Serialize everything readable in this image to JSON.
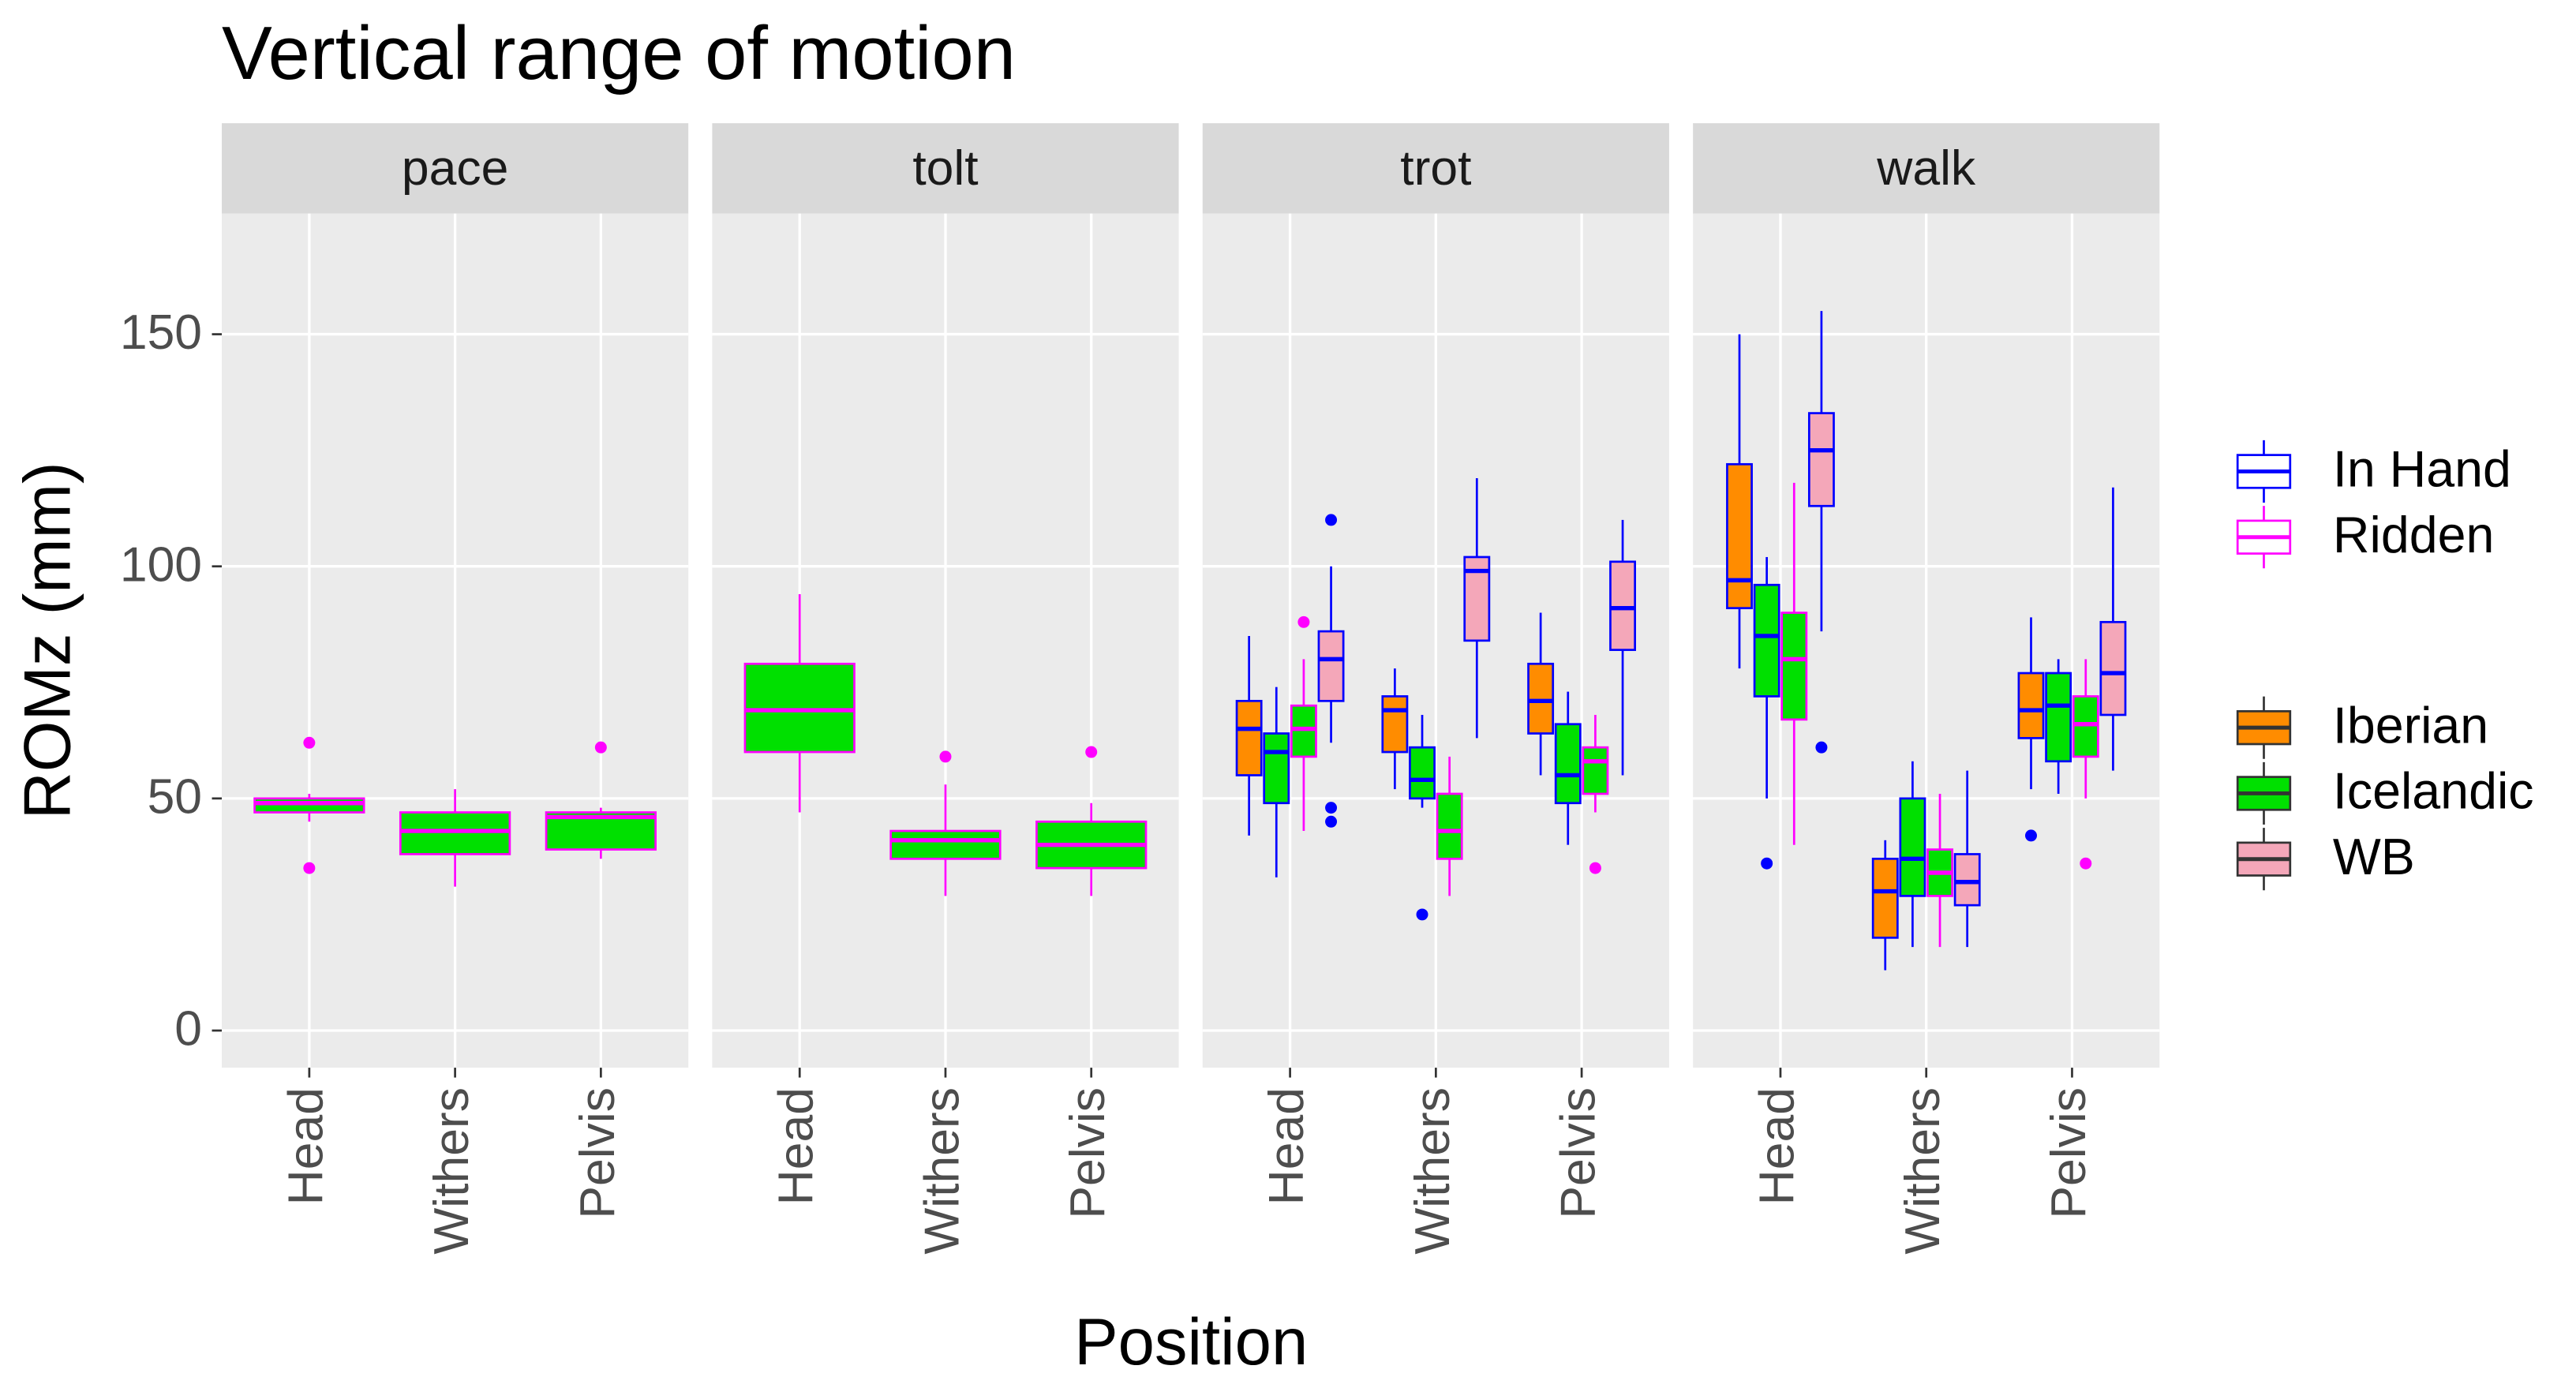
{
  "chart_data": {
    "type": "box",
    "title": "Vertical range of motion",
    "x_label": "Position",
    "y_label": "ROMz (mm)",
    "ylim": [
      -8,
      176
    ],
    "yticks": [
      0,
      50,
      100,
      150
    ],
    "grid": true,
    "categories": [
      "Head",
      "Withers",
      "Pelvis"
    ],
    "legends": {
      "outline": [
        {
          "name": "In Hand",
          "color": "#0000ff"
        },
        {
          "name": "Ridden",
          "color": "#ff00ff"
        }
      ],
      "fill": [
        {
          "name": "Iberian",
          "color": "#ff8c00"
        },
        {
          "name": "Icelandic",
          "color": "#00e000"
        },
        {
          "name": "WB",
          "color": "#f4a7b9"
        }
      ]
    },
    "facets": [
      {
        "name": "pace",
        "boxes": [
          {
            "position": "Head",
            "breed": "Icelandic",
            "handling": "Ridden",
            "stats": [
              45,
              47,
              49,
              50,
              51
            ],
            "outliers": [
              62,
              35
            ]
          },
          {
            "position": "Withers",
            "breed": "Icelandic",
            "handling": "Ridden",
            "stats": [
              31,
              38,
              43,
              47,
              52
            ]
          },
          {
            "position": "Pelvis",
            "breed": "Icelandic",
            "handling": "Ridden",
            "stats": [
              37,
              39,
              46,
              47,
              48
            ],
            "outliers": [
              61
            ]
          }
        ]
      },
      {
        "name": "tolt",
        "boxes": [
          {
            "position": "Head",
            "breed": "Icelandic",
            "handling": "Ridden",
            "stats": [
              47,
              60,
              69,
              79,
              94
            ]
          },
          {
            "position": "Withers",
            "breed": "Icelandic",
            "handling": "Ridden",
            "stats": [
              29,
              37,
              41,
              43,
              53
            ],
            "outliers": [
              59
            ]
          },
          {
            "position": "Pelvis",
            "breed": "Icelandic",
            "handling": "Ridden",
            "stats": [
              29,
              35,
              40,
              45,
              49
            ],
            "outliers": [
              60
            ]
          }
        ]
      },
      {
        "name": "trot",
        "boxes": [
          {
            "position": "Head",
            "breed": "Iberian",
            "handling": "In Hand",
            "stats": [
              42,
              55,
              65,
              71,
              85
            ]
          },
          {
            "position": "Head",
            "breed": "Icelandic",
            "handling": "In Hand",
            "stats": [
              33,
              49,
              60,
              64,
              74
            ]
          },
          {
            "position": "Head",
            "breed": "Icelandic",
            "handling": "Ridden",
            "stats": [
              43,
              59,
              65,
              70,
              80
            ],
            "outliers": [
              88
            ]
          },
          {
            "position": "Head",
            "breed": "WB",
            "handling": "In Hand",
            "stats": [
              62,
              71,
              80,
              86,
              100
            ],
            "outliers": [
              110,
              48,
              45
            ]
          },
          {
            "position": "Withers",
            "breed": "Iberian",
            "handling": "In Hand",
            "stats": [
              52,
              60,
              69,
              72,
              78
            ]
          },
          {
            "position": "Withers",
            "breed": "Icelandic",
            "handling": "In Hand",
            "stats": [
              48,
              50,
              54,
              61,
              68
            ],
            "outliers": [
              25
            ]
          },
          {
            "position": "Withers",
            "breed": "Icelandic",
            "handling": "Ridden",
            "stats": [
              29,
              37,
              43,
              51,
              59
            ]
          },
          {
            "position": "Withers",
            "breed": "WB",
            "handling": "In Hand",
            "stats": [
              63,
              84,
              99,
              102,
              119
            ]
          },
          {
            "position": "Pelvis",
            "breed": "Iberian",
            "handling": "In Hand",
            "stats": [
              55,
              64,
              71,
              79,
              90
            ]
          },
          {
            "position": "Pelvis",
            "breed": "Icelandic",
            "handling": "In Hand",
            "stats": [
              40,
              49,
              55,
              66,
              73
            ]
          },
          {
            "position": "Pelvis",
            "breed": "Icelandic",
            "handling": "Ridden",
            "stats": [
              47,
              51,
              58,
              61,
              68
            ],
            "outliers": [
              35
            ]
          },
          {
            "position": "Pelvis",
            "breed": "WB",
            "handling": "In Hand",
            "stats": [
              55,
              82,
              91,
              101,
              110
            ]
          }
        ]
      },
      {
        "name": "walk",
        "boxes": [
          {
            "position": "Head",
            "breed": "Iberian",
            "handling": "In Hand",
            "stats": [
              78,
              91,
              97,
              122,
              150
            ]
          },
          {
            "position": "Head",
            "breed": "Icelandic",
            "handling": "In Hand",
            "stats": [
              50,
              72,
              85,
              96,
              102
            ],
            "outliers": [
              36
            ]
          },
          {
            "position": "Head",
            "breed": "Icelandic",
            "handling": "Ridden",
            "stats": [
              40,
              67,
              80,
              90,
              118
            ]
          },
          {
            "position": "Head",
            "breed": "WB",
            "handling": "In Hand",
            "stats": [
              86,
              113,
              125,
              133,
              155
            ],
            "outliers": [
              61
            ]
          },
          {
            "position": "Withers",
            "breed": "Iberian",
            "handling": "In Hand",
            "stats": [
              13,
              20,
              30,
              37,
              41
            ]
          },
          {
            "position": "Withers",
            "breed": "Icelandic",
            "handling": "In Hand",
            "stats": [
              18,
              29,
              37,
              50,
              58
            ]
          },
          {
            "position": "Withers",
            "breed": "Icelandic",
            "handling": "Ridden",
            "stats": [
              18,
              29,
              34,
              39,
              51
            ]
          },
          {
            "position": "Withers",
            "breed": "WB",
            "handling": "In Hand",
            "stats": [
              18,
              27,
              32,
              38,
              56
            ]
          },
          {
            "position": "Pelvis",
            "breed": "Iberian",
            "handling": "In Hand",
            "stats": [
              52,
              63,
              69,
              77,
              89
            ],
            "outliers": [
              42
            ]
          },
          {
            "position": "Pelvis",
            "breed": "Icelandic",
            "handling": "In Hand",
            "stats": [
              51,
              58,
              70,
              77,
              80
            ]
          },
          {
            "position": "Pelvis",
            "breed": "Icelandic",
            "handling": "Ridden",
            "stats": [
              50,
              59,
              66,
              72,
              80
            ],
            "outliers": [
              36
            ]
          },
          {
            "position": "Pelvis",
            "breed": "WB",
            "handling": "In Hand",
            "stats": [
              56,
              68,
              77,
              88,
              117
            ]
          }
        ]
      }
    ]
  }
}
